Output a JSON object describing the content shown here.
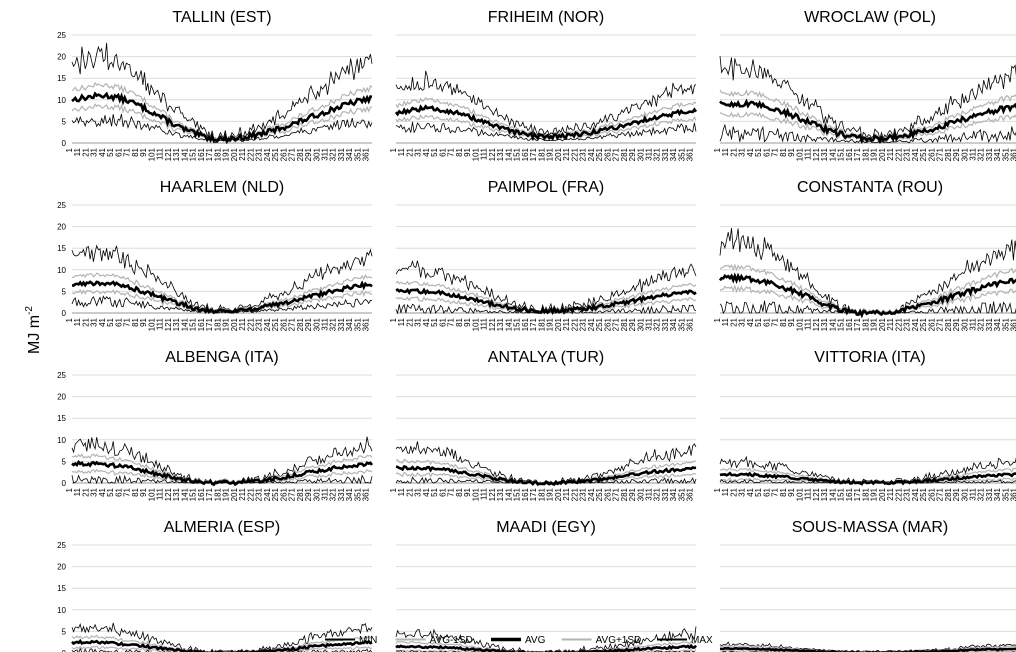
{
  "figure": {
    "ylabel": "MJ m",
    "ylabel_superscript": "-2"
  },
  "chart_data": {
    "type": "line",
    "x_axis": {
      "label": "",
      "range": [
        1,
        365
      ],
      "tick_labels": [
        "1",
        "11",
        "21",
        "31",
        "41",
        "51",
        "61",
        "71",
        "81",
        "91",
        "101",
        "111",
        "121",
        "131",
        "141",
        "151",
        "161",
        "171",
        "181",
        "191",
        "201",
        "211",
        "221",
        "231",
        "241",
        "251",
        "261",
        "271",
        "281",
        "291",
        "301",
        "311",
        "321",
        "331",
        "341",
        "351",
        "361"
      ]
    },
    "y_axis": {
      "label": "MJ m-2",
      "range": [
        0,
        25
      ],
      "ticks": [
        0,
        5,
        10,
        15,
        20,
        25
      ]
    },
    "grid": "horizontal",
    "legend_placement": "bottom",
    "legend": [
      "MIN",
      "AVG-1SD",
      "AVG",
      "AVG+1SD",
      "MAX"
    ],
    "series_styles": {
      "MIN": "#000000",
      "AVG-1SD": "#b3b3b3",
      "AVG": "#000000",
      "AVG+1SD": "#b3b3b3",
      "MAX": "#000000"
    },
    "panels": [
      {
        "title": "TALLIN (EST)",
        "avg_start": 10,
        "avg_peak": 11,
        "avg_peak_day": 35,
        "avg_min": 1,
        "avg_min_day": 183,
        "avg_end": 10,
        "sd": 2.5,
        "max_peak": 20,
        "min_low": 4.5
      },
      {
        "title": "FRIHEIM (NOR)",
        "avg_start": 7,
        "avg_peak": 8,
        "avg_peak_day": 35,
        "avg_min": 1.5,
        "avg_min_day": 183,
        "avg_end": 8,
        "sd": 2,
        "max_peak": 14,
        "min_low": 3
      },
      {
        "title": "WROCLAW (POL)",
        "avg_start": 9,
        "avg_peak": 9,
        "avg_peak_day": 30,
        "avg_min": 1,
        "avg_min_day": 183,
        "avg_end": 8,
        "sd": 2.5,
        "max_peak": 17,
        "min_low": 1
      },
      {
        "title": "HAARLEM (NLD)",
        "avg_start": 6.5,
        "avg_peak": 7,
        "avg_peak_day": 30,
        "avg_min": 0.5,
        "avg_min_day": 183,
        "avg_end": 6.5,
        "sd": 2,
        "max_peak": 14,
        "min_low": 2
      },
      {
        "title": "PAIMPOL (FRA)",
        "avg_start": 5,
        "avg_peak": 5,
        "avg_peak_day": 25,
        "avg_min": 0.5,
        "avg_min_day": 183,
        "avg_end": 5,
        "sd": 1.8,
        "max_peak": 10,
        "min_low": 0
      },
      {
        "title": "CONSTANTA (ROU)",
        "avg_start": 8,
        "avg_peak": 8,
        "avg_peak_day": 25,
        "avg_min": 0,
        "avg_min_day": 183,
        "avg_end": 8,
        "sd": 2.5,
        "max_peak": 16,
        "min_low": 0
      },
      {
        "title": "ALBENGA (ITA)",
        "avg_start": 4.5,
        "avg_peak": 4.5,
        "avg_peak_day": 20,
        "avg_min": 0,
        "avg_min_day": 183,
        "avg_end": 4.5,
        "sd": 1.8,
        "max_peak": 9,
        "min_low": 0
      },
      {
        "title": "ANTALYA (TUR)",
        "avg_start": 3.5,
        "avg_peak": 3.5,
        "avg_peak_day": 20,
        "avg_min": 0,
        "avg_min_day": 183,
        "avg_end": 3.5,
        "sd": 1.5,
        "max_peak": 8,
        "min_low": 0
      },
      {
        "title": "VITTORIA (ITA)",
        "avg_start": 2,
        "avg_peak": 2,
        "avg_peak_day": 15,
        "avg_min": 0,
        "avg_min_day": 183,
        "avg_end": 2,
        "sd": 1.2,
        "max_peak": 5,
        "min_low": 0
      },
      {
        "title": "ALMERIA (ESP)",
        "avg_start": 2.5,
        "avg_peak": 2.5,
        "avg_peak_day": 20,
        "avg_min": 0,
        "avg_min_day": 183,
        "avg_end": 2.5,
        "sd": 1.2,
        "max_peak": 6,
        "min_low": 0
      },
      {
        "title": "MAADI (EGY)",
        "avg_start": 1.5,
        "avg_peak": 1.5,
        "avg_peak_day": 15,
        "avg_min": 0,
        "avg_min_day": 183,
        "avg_end": 1.5,
        "sd": 1,
        "max_peak": 4.5,
        "min_low": 0
      },
      {
        "title": "SOUS-MASSA (MAR)",
        "avg_start": 1,
        "avg_peak": 1,
        "avg_peak_day": 15,
        "avg_min": 0,
        "avg_min_day": 183,
        "avg_end": 1,
        "sd": 0.6,
        "max_peak": 2,
        "min_low": 0
      }
    ]
  }
}
